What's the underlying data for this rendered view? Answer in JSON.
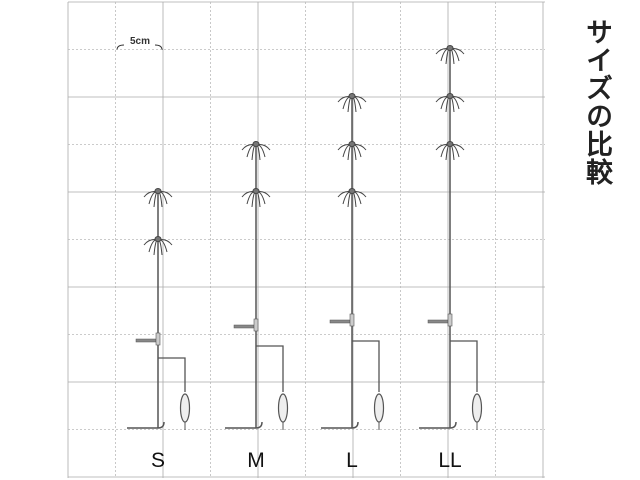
{
  "title": "サイズの比較",
  "scale_label": "5cm",
  "sizes": [
    "S",
    "M",
    "L",
    "LL"
  ]
}
